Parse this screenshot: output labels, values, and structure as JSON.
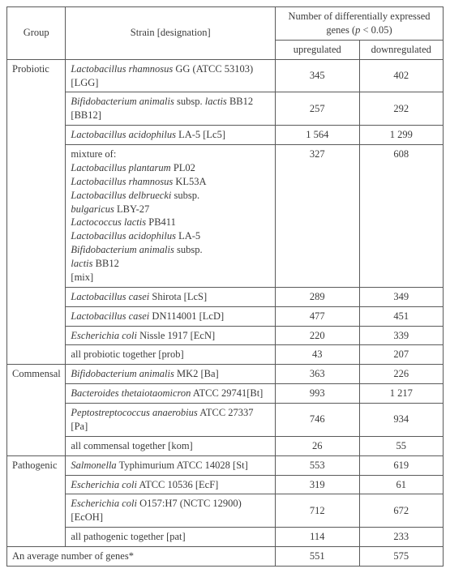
{
  "table": {
    "header": {
      "group": "Group",
      "strain": "Strain [designation]",
      "merge": "Number of differentially expressed genes (p < 0.05)",
      "up": "upregulated",
      "down": "downregulated"
    },
    "groups": [
      {
        "name": "Probiotic",
        "rows": [
          {
            "strain_html": "<span class=\"italic\">Lactobacillus rhamnosus</span> GG (ATCC 53103) [LGG]",
            "up": "345",
            "down": "402"
          },
          {
            "strain_html": "<span class=\"italic\">Bifidobacterium animalis</span> subsp. <span class=\"italic\">lactis</span> BB12 [BB12]",
            "up": "257",
            "down": "292"
          },
          {
            "strain_html": "<span class=\"italic\">Lactobacillus acidophilus</span> LA-5 [Lc5]",
            "up": "1 564",
            "down": "1 299"
          },
          {
            "strain_html": "mixture of:<br><span class=\"italic\">Lactobacillus plantarum</span> PL02<br><span class=\"italic\">Lactobacillus rhamnosus</span> KL53A<br><span class=\"italic\">Lactobacillus delbruecki</span> subsp.<br><span class=\"italic\">bulgaricus</span> LBY-27<br><span class=\"italic\">Lactococcus lactis</span> PB411<br><span class=\"italic\">Lactobacillus acidophilus</span> LA-5<br><span class=\"italic\">Bifidobacterium animalis</span> subsp.<br><span class=\"italic\">lactis</span> BB12<br>[mix]",
            "up": "327",
            "down": "608"
          },
          {
            "strain_html": "<span class=\"italic\">Lactobacillus casei</span> Shirota [LcS]",
            "up": "289",
            "down": "349"
          },
          {
            "strain_html": "<span class=\"italic\">Lactobacillus casei</span> DN114001 [LcD]",
            "up": "477",
            "down": "451"
          },
          {
            "strain_html": "<span class=\"italic\">Escherichia coli</span> Nissle 1917 [EcN]",
            "up": "220",
            "down": "339"
          },
          {
            "strain_html": "all probiotic together [prob]",
            "up": "43",
            "down": "207"
          }
        ]
      },
      {
        "name": "Commensal",
        "rows": [
          {
            "strain_html": "<span class=\"italic\">Bifidobacterium animalis</span> MK2 [Ba]",
            "up": "363",
            "down": "226"
          },
          {
            "strain_html": "<span class=\"italic\">Bacteroides thetaiotaomicron</span> ATCC 29741[Bt]",
            "up": "993",
            "down": "1 217"
          },
          {
            "strain_html": "<span class=\"italic\">Peptostreptococcus anaerobius</span> ATCC 27337 [Pa]",
            "up": "746",
            "down": "934"
          },
          {
            "strain_html": "all commensal together [kom]",
            "up": "26",
            "down": "55"
          }
        ]
      },
      {
        "name": "Pathogenic",
        "rows": [
          {
            "strain_html": "<span class=\"italic\">Salmonella</span> Typhimurium ATCC 14028 [St]",
            "up": "553",
            "down": "619"
          },
          {
            "strain_html": "<span class=\"italic\">Escherichia coli</span> ATCC 10536 [EcF]",
            "up": "319",
            "down": "61"
          },
          {
            "strain_html": "<span class=\"italic\">Escherichia coli</span> O157:H7 (NCTC 12900) [EcOH]",
            "up": "712",
            "down": "672"
          },
          {
            "strain_html": "all pathogenic together [pat]",
            "up": "114",
            "down": "233"
          }
        ]
      }
    ],
    "footer": {
      "label": "An average number of genes*",
      "up": "551",
      "down": "575"
    },
    "style": {
      "font_family": "Times New Roman",
      "font_size_pt": 10,
      "border_color": "#5a5a5a",
      "text_color": "#3b3b3b",
      "background_color": "#ffffff"
    }
  }
}
